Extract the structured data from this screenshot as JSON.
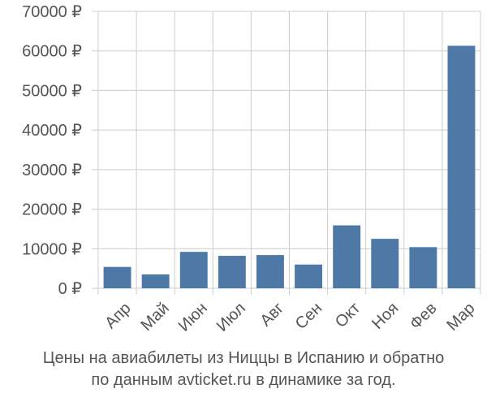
{
  "chart_data": {
    "type": "bar",
    "categories": [
      "Апр",
      "Май",
      "Июн",
      "Июл",
      "Авг",
      "Сен",
      "Окт",
      "Ноя",
      "Фев",
      "Мар"
    ],
    "values": [
      5400,
      3500,
      9200,
      8200,
      8400,
      6000,
      15900,
      12500,
      10400,
      61300
    ],
    "ylim": [
      0,
      70000
    ],
    "yticks": [
      0,
      10000,
      20000,
      30000,
      40000,
      50000,
      60000,
      70000
    ],
    "ytick_labels": [
      "0 ₽",
      "10000 ₽",
      "20000 ₽",
      "30000 ₽",
      "40000 ₽",
      "50000 ₽",
      "60000 ₽",
      "70000 ₽"
    ],
    "grid": true,
    "bar_color": "#4e79a7",
    "grid_color": "#cccccc",
    "caption_line1": "Цены на авиабилеты из Ниццы в Испанию и обратно",
    "caption_line2": "по данным avticket.ru в динамике за год."
  }
}
